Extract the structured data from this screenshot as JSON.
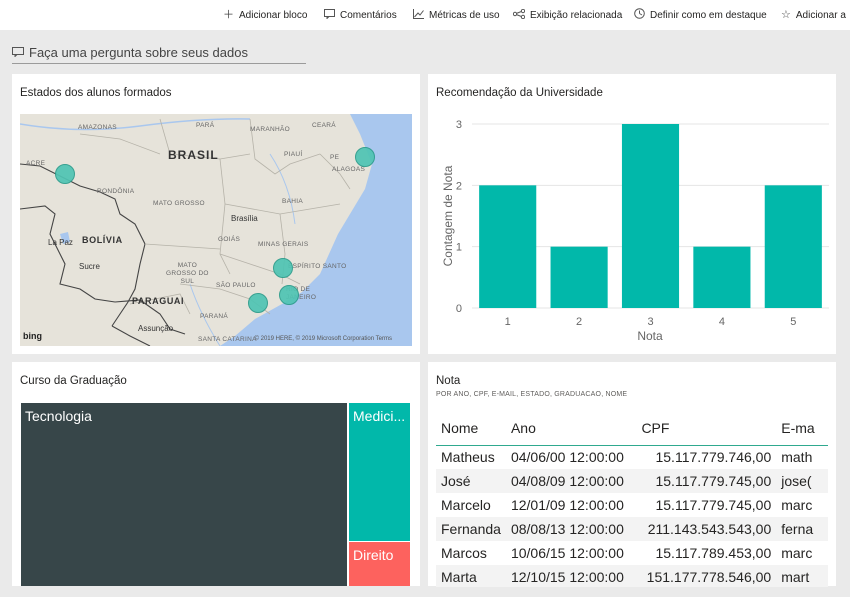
{
  "toolbar": {
    "items": [
      {
        "label": "Adicionar bloco",
        "icon": "plus-icon"
      },
      {
        "label": "Comentários",
        "icon": "comment-icon"
      },
      {
        "label": "Métricas de uso",
        "icon": "chart-line-icon"
      },
      {
        "label": "Exibição relacionada",
        "icon": "related-icon"
      },
      {
        "label": "Definir como em destaque",
        "icon": "featured-icon"
      },
      {
        "label": "Adicionar a",
        "icon": "star-icon"
      }
    ]
  },
  "qa": {
    "placeholder": "Faça uma pergunta sobre seus dados"
  },
  "tiles": {
    "map": {
      "title": "Estados dos alunos formados",
      "labels": {
        "brasil": "BRASIL",
        "bolivia": "BOLÍVIA",
        "paraguai": "PARAGUAI",
        "amazonas": "AMAZONAS",
        "para": "PARÁ",
        "maranhao": "MARANHÃO",
        "ceara": "CEARÁ",
        "piaui": "PIAUÍ",
        "pe": "PE",
        "acre": "ACRE",
        "rondonia": "RONDÔNIA",
        "alagoas": "ALAGOAS",
        "mato_grosso": "MATO GROSSO",
        "bahia": "BAHIA",
        "brasilia": "Brasília",
        "goias": "GOIÁS",
        "minas": "MINAS GERAIS",
        "la_paz": "La Paz",
        "sucre": "Sucre",
        "espirito": "ESPÍRITO SANTO",
        "mgs": "MATO\nGROSSO DO\nSUL",
        "sao_paulo": "SÃO PAULO",
        "rio": "RIO DE\nJANEIRO",
        "parana": "PARANÁ",
        "assuncao": "Assunção",
        "santa_catarina": "SANTA CATARINA"
      },
      "copyright": "© 2019 HERE, © 2019 Microsoft Corporation  Terms",
      "logo": "bing"
    },
    "bar": {
      "title": "Recomendação da Universidade"
    },
    "treemap": {
      "title": "Curso da Graduação",
      "items": [
        {
          "label": "Tecnologia",
          "color": "#374649"
        },
        {
          "label": "Medici...",
          "color": "#01b8aa"
        },
        {
          "label": "Direito",
          "color": "#fd625e"
        }
      ]
    },
    "table": {
      "title": "Nota",
      "subtitle": "POR ANO, CPF, E-MAIL, ESTADO, GRADUACAO, NOME",
      "columns": [
        "Nome",
        "Ano",
        "CPF",
        "E-ma"
      ],
      "rows": [
        [
          "Matheus",
          "04/06/00 12:00:00",
          "15.117.779.746,00",
          "math"
        ],
        [
          "José",
          "04/08/09 12:00:00",
          "15.117.779.745,00",
          "jose("
        ],
        [
          "Marcelo",
          "12/01/09 12:00:00",
          "15.117.779.745,00",
          "marc"
        ],
        [
          "Fernanda",
          "08/08/13 12:00:00",
          "211.143.543.543,00",
          "ferna"
        ],
        [
          "Marcos",
          "10/06/15 12:00:00",
          "15.117.789.453,00",
          "marc"
        ],
        [
          "Marta",
          "12/10/15 12:00:00",
          "151.177.778.546,00",
          "mart"
        ]
      ]
    }
  },
  "chart_data": {
    "type": "bar",
    "title": "Recomendação da Universidade",
    "categories": [
      "1",
      "2",
      "3",
      "4",
      "5"
    ],
    "values": [
      2,
      1,
      3,
      1,
      2
    ],
    "xlabel": "Nota",
    "ylabel": "Contagem de Nota",
    "ylim": [
      0,
      3
    ],
    "yticks": [
      "0",
      "1",
      "2",
      "3"
    ],
    "color": "#01b8aa",
    "grid": true
  }
}
